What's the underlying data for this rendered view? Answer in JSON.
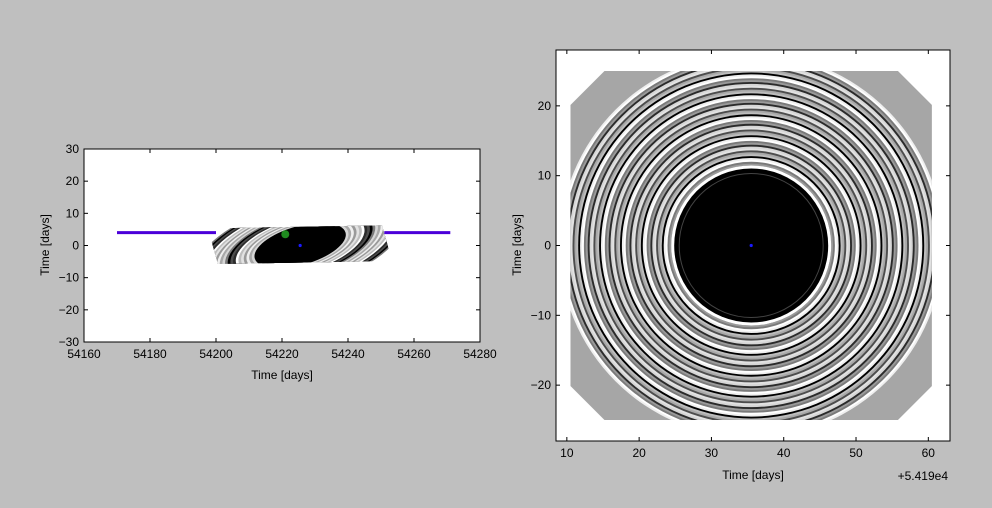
{
  "chart_data": [
    {
      "type": "heatmap",
      "xlabel": "Time [days]",
      "ylabel": "Time [days]",
      "xlim": [
        54160,
        54280
      ],
      "ylim": [
        -30,
        30
      ],
      "xticks": [
        54160,
        54180,
        54200,
        54220,
        54240,
        54260,
        54280
      ],
      "yticks": [
        -30,
        -20,
        -10,
        0,
        10,
        20,
        30
      ],
      "grid": false,
      "series": [
        {
          "kind": "line",
          "color": "#4b00d9",
          "x": [
            54170,
            54200
          ],
          "y": [
            4,
            4
          ]
        },
        {
          "kind": "line",
          "color": "#4b00d9",
          "x": [
            54251,
            54271
          ],
          "y": [
            4,
            4
          ]
        },
        {
          "kind": "point",
          "color": "#1f8a1f",
          "x": [
            54221
          ],
          "y": [
            3.5
          ]
        },
        {
          "kind": "point",
          "color": "#1a1aff",
          "x": [
            54225.5
          ],
          "y": [
            0
          ]
        }
      ],
      "image": {
        "kind": "sheared-rings",
        "x": [
          54200,
          54251
        ],
        "y": [
          -12,
          14
        ]
      }
    },
    {
      "type": "heatmap",
      "xlabel": "Time [days]",
      "ylabel": "Time [days]",
      "offset_text": "+5.419e4",
      "xlim": [
        8.5,
        63
      ],
      "ylim": [
        -28,
        28
      ],
      "xticks": [
        10,
        20,
        30,
        40,
        50,
        60
      ],
      "yticks": [
        -20,
        -10,
        0,
        10,
        20
      ],
      "grid": false,
      "center": [
        35.5,
        0
      ],
      "series": [
        {
          "kind": "point",
          "color": "#1a1aff",
          "x": [
            35.5
          ],
          "y": [
            0
          ]
        }
      ],
      "image": {
        "kind": "concentric-rings",
        "x": [
          10.5,
          60.5
        ],
        "y": [
          -25,
          25
        ]
      }
    }
  ]
}
